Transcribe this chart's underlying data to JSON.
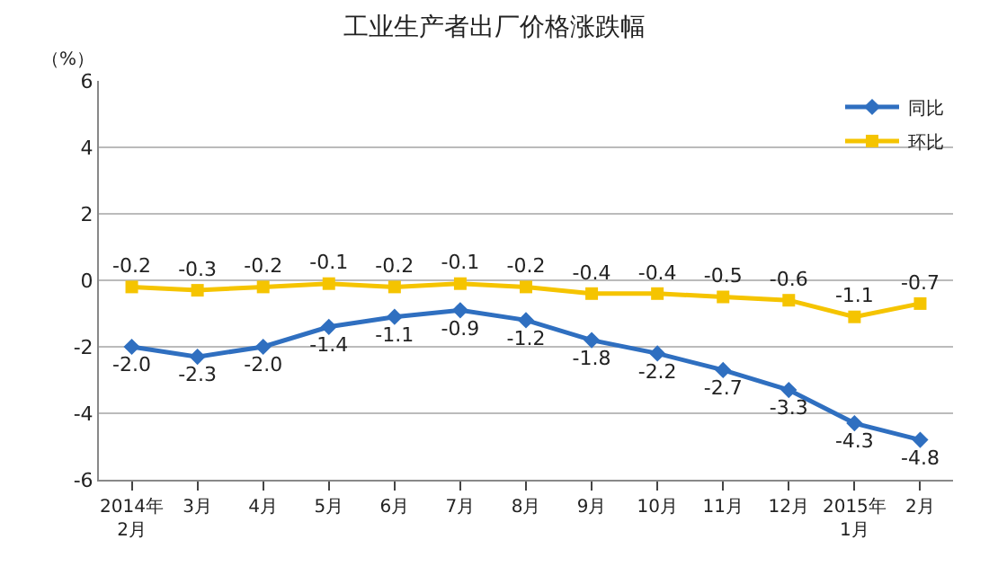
{
  "chart_data": {
    "type": "line",
    "title": "工业生产者出厂价格涨跌幅",
    "ylabel": "（%）",
    "categories": [
      "2014年\n2月",
      "3月",
      "4月",
      "5月",
      "6月",
      "7月",
      "8月",
      "9月",
      "10月",
      "11月",
      "12月",
      "2015年\n1月",
      "2月"
    ],
    "series": [
      {
        "name": "同比",
        "color": "#2f6fc0",
        "marker": "diamond",
        "values": [
          -2.0,
          -2.3,
          -2.0,
          -1.4,
          -1.1,
          -0.9,
          -1.2,
          -1.8,
          -2.2,
          -2.7,
          -3.3,
          -4.3,
          -4.8
        ],
        "value_labels": [
          "-2.0",
          "-2.3",
          "-2.0",
          "-1.4",
          "-1.1",
          "-0.9",
          "-1.2",
          "-1.8",
          "-2.2",
          "-2.7",
          "-3.3",
          "-4.3",
          "-4.8"
        ]
      },
      {
        "name": "环比",
        "color": "#f5c400",
        "marker": "square",
        "values": [
          -0.2,
          -0.3,
          -0.2,
          -0.1,
          -0.2,
          -0.1,
          -0.2,
          -0.4,
          -0.4,
          -0.5,
          -0.6,
          -1.1,
          -0.7
        ],
        "value_labels": [
          "-0.2",
          "-0.3",
          "-0.2",
          "-0.1",
          "-0.2",
          "-0.1",
          "-0.2",
          "-0.4",
          "-0.4",
          "-0.5",
          "-0.6",
          "-1.1",
          "-0.7"
        ]
      }
    ],
    "ylim": [
      -6,
      6
    ],
    "yticks": [
      -6,
      -4,
      -2,
      0,
      2,
      4,
      6
    ],
    "grid": "y",
    "legend": "top right"
  }
}
